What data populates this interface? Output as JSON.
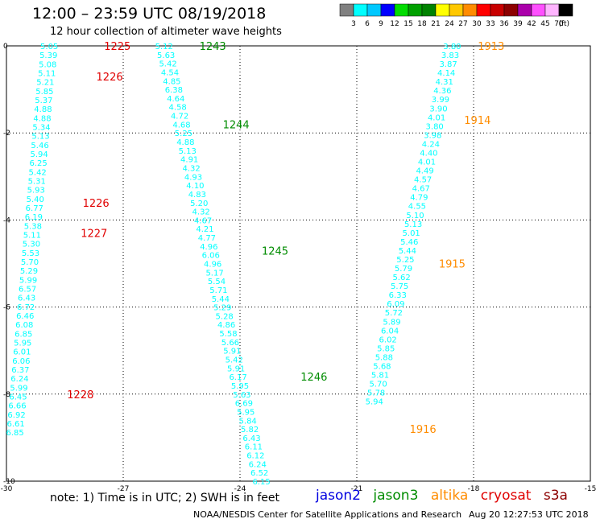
{
  "header": {
    "title": "12:00 – 23:59 UTC 08/19/2018",
    "subtitle": "12 hour collection of altimeter wave heights"
  },
  "color_scale": {
    "labels": [
      "3",
      "6",
      "9",
      "12",
      "15",
      "18",
      "21",
      "24",
      "27",
      "30",
      "33",
      "36",
      "39",
      "42",
      "45",
      "70"
    ],
    "unit": "(ft)",
    "colors": [
      "#808080",
      "#00ffff",
      "#00c8ff",
      "#0000ff",
      "#00dc00",
      "#00a000",
      "#008200",
      "#ffff00",
      "#ffc800",
      "#ff8c00",
      "#ff0000",
      "#c80000",
      "#8c0000",
      "#aa00aa",
      "#ff50ff",
      "#ffb4ff",
      "#000000"
    ]
  },
  "map": {
    "lon_range": [
      -30,
      -15
    ],
    "lat_range": [
      -10,
      0
    ],
    "lon_ticks": [
      "-30",
      "-27",
      "-24",
      "-21",
      "-18",
      "-15"
    ],
    "lat_ticks": [
      "0",
      "-2",
      "-4",
      "-6",
      "-8",
      "-10"
    ],
    "tracks": [
      {
        "name": "track-a",
        "points": [
          {
            "lon": -28.9,
            "lat": 0,
            "v": "5.05"
          },
          {
            "lon": -28.92,
            "lat": -0.206,
            "v": "5.39"
          },
          {
            "lon": -28.94,
            "lat": -0.413,
            "v": "5.08"
          },
          {
            "lon": -28.96,
            "lat": -0.619,
            "v": "5.11"
          },
          {
            "lon": -29.0,
            "lat": -0.826,
            "v": "5.21"
          },
          {
            "lon": -29.02,
            "lat": -1.032,
            "v": "5.85"
          },
          {
            "lon": -29.04,
            "lat": -1.239,
            "v": "5.37"
          },
          {
            "lon": -29.06,
            "lat": -1.445,
            "v": "4.88"
          },
          {
            "lon": -29.08,
            "lat": -1.651,
            "v": "4.88"
          },
          {
            "lon": -29.1,
            "lat": -1.858,
            "v": "5.34"
          },
          {
            "lon": -29.12,
            "lat": -2.064,
            "v": "5.13"
          },
          {
            "lon": -29.14,
            "lat": -2.27,
            "v": "5.46"
          },
          {
            "lon": -29.16,
            "lat": -2.477,
            "v": "5.94"
          },
          {
            "lon": -29.18,
            "lat": -2.683,
            "v": "6.25"
          },
          {
            "lon": -29.2,
            "lat": -2.89,
            "v": "5.42"
          },
          {
            "lon": -29.22,
            "lat": -3.096,
            "v": "5.31"
          },
          {
            "lon": -29.24,
            "lat": -3.303,
            "v": "5.93"
          },
          {
            "lon": -29.26,
            "lat": -3.509,
            "v": "5.40"
          },
          {
            "lon": -29.28,
            "lat": -3.716,
            "v": "6.77"
          },
          {
            "lon": -29.3,
            "lat": -3.922,
            "v": "6.19"
          },
          {
            "lon": -29.32,
            "lat": -4.128,
            "v": "5.38"
          },
          {
            "lon": -29.34,
            "lat": -4.335,
            "v": "5.11"
          },
          {
            "lon": -29.36,
            "lat": -4.541,
            "v": "5.30"
          },
          {
            "lon": -29.38,
            "lat": -4.748,
            "v": "5.53"
          },
          {
            "lon": -29.4,
            "lat": -4.954,
            "v": "5.70"
          },
          {
            "lon": -29.42,
            "lat": -5.161,
            "v": "5.29"
          },
          {
            "lon": -29.44,
            "lat": -5.367,
            "v": "5.99"
          },
          {
            "lon": -29.46,
            "lat": -5.573,
            "v": "6.57"
          },
          {
            "lon": -29.48,
            "lat": -5.78,
            "v": "6.43"
          },
          {
            "lon": -29.5,
            "lat": -5.986,
            "v": "6.72"
          },
          {
            "lon": -29.52,
            "lat": -6.193,
            "v": "6.46"
          },
          {
            "lon": -29.54,
            "lat": -6.399,
            "v": "6.08"
          },
          {
            "lon": -29.56,
            "lat": -6.606,
            "v": "6.85"
          },
          {
            "lon": -29.58,
            "lat": -6.812,
            "v": "5.95"
          },
          {
            "lon": -29.6,
            "lat": -7.018,
            "v": "6.01"
          },
          {
            "lon": -29.62,
            "lat": -7.225,
            "v": "6.06"
          },
          {
            "lon": -29.64,
            "lat": -7.431,
            "v": "6.37"
          },
          {
            "lon": -29.66,
            "lat": -7.638,
            "v": "6.24"
          },
          {
            "lon": -29.68,
            "lat": -7.844,
            "v": "5.99"
          },
          {
            "lon": -29.7,
            "lat": -8.051,
            "v": "6.45"
          },
          {
            "lon": -29.72,
            "lat": -8.257,
            "v": "6.66"
          },
          {
            "lon": -29.74,
            "lat": -8.463,
            "v": "6.92"
          },
          {
            "lon": -29.76,
            "lat": -8.67,
            "v": "6.61"
          },
          {
            "lon": -29.78,
            "lat": -8.876,
            "v": "6.85"
          }
        ]
      },
      {
        "name": "track-b",
        "points": [
          {
            "lon": -25.95,
            "lat": 0,
            "v": "5.12"
          },
          {
            "lon": -25.9,
            "lat": -0.2,
            "v": "5.63"
          },
          {
            "lon": -25.85,
            "lat": -0.4,
            "v": "5.42"
          },
          {
            "lon": -25.8,
            "lat": -0.6,
            "v": "4.54"
          },
          {
            "lon": -25.75,
            "lat": -0.8,
            "v": "4.85"
          },
          {
            "lon": -25.7,
            "lat": -1.0,
            "v": "6.38"
          },
          {
            "lon": -25.65,
            "lat": -1.2,
            "v": "4.64"
          },
          {
            "lon": -25.6,
            "lat": -1.4,
            "v": "4.58"
          },
          {
            "lon": -25.55,
            "lat": -1.6,
            "v": "4.72"
          },
          {
            "lon": -25.5,
            "lat": -1.8,
            "v": "4.68"
          },
          {
            "lon": -25.45,
            "lat": -2.0,
            "v": "5.25"
          },
          {
            "lon": -25.4,
            "lat": -2.2,
            "v": "4.88"
          },
          {
            "lon": -25.35,
            "lat": -2.4,
            "v": "5.13"
          },
          {
            "lon": -25.3,
            "lat": -2.6,
            "v": "4.91"
          },
          {
            "lon": -25.25,
            "lat": -2.8,
            "v": "4.32"
          },
          {
            "lon": -25.2,
            "lat": -3.0,
            "v": "4.93"
          },
          {
            "lon": -25.15,
            "lat": -3.2,
            "v": "4.10"
          },
          {
            "lon": -25.1,
            "lat": -3.4,
            "v": "4.83"
          },
          {
            "lon": -25.05,
            "lat": -3.6,
            "v": "5.20"
          },
          {
            "lon": -25.0,
            "lat": -3.8,
            "v": "4.32"
          },
          {
            "lon": -24.95,
            "lat": -4.0,
            "v": "4.67"
          },
          {
            "lon": -24.9,
            "lat": -4.2,
            "v": "4.21"
          },
          {
            "lon": -24.85,
            "lat": -4.4,
            "v": "4.77"
          },
          {
            "lon": -24.8,
            "lat": -4.6,
            "v": "4.96"
          },
          {
            "lon": -24.75,
            "lat": -4.8,
            "v": "6.06"
          },
          {
            "lon": -24.7,
            "lat": -5.0,
            "v": "4.96"
          },
          {
            "lon": -24.65,
            "lat": -5.2,
            "v": "5.17"
          },
          {
            "lon": -24.6,
            "lat": -5.4,
            "v": "5.54"
          },
          {
            "lon": -24.55,
            "lat": -5.6,
            "v": "5.71"
          },
          {
            "lon": -24.5,
            "lat": -5.8,
            "v": "5.44"
          },
          {
            "lon": -24.45,
            "lat": -6.0,
            "v": "5.29"
          },
          {
            "lon": -24.4,
            "lat": -6.2,
            "v": "5.28"
          },
          {
            "lon": -24.35,
            "lat": -6.4,
            "v": "4.86"
          },
          {
            "lon": -24.3,
            "lat": -6.6,
            "v": "5.58"
          },
          {
            "lon": -24.25,
            "lat": -6.8,
            "v": "5.66"
          },
          {
            "lon": -24.2,
            "lat": -7.0,
            "v": "5.91"
          },
          {
            "lon": -24.15,
            "lat": -7.2,
            "v": "5.42"
          },
          {
            "lon": -24.1,
            "lat": -7.4,
            "v": "5.91"
          },
          {
            "lon": -24.05,
            "lat": -7.6,
            "v": "6.17"
          },
          {
            "lon": -24.0,
            "lat": -7.8,
            "v": "5.95"
          },
          {
            "lon": -23.95,
            "lat": -8.0,
            "v": "5.63"
          },
          {
            "lon": -23.9,
            "lat": -8.2,
            "v": "6.69"
          },
          {
            "lon": -23.85,
            "lat": -8.4,
            "v": "5.95"
          },
          {
            "lon": -23.8,
            "lat": -8.6,
            "v": "5.84"
          },
          {
            "lon": -23.75,
            "lat": -8.8,
            "v": "5.82"
          },
          {
            "lon": -23.7,
            "lat": -9.0,
            "v": "6.43"
          },
          {
            "lon": -23.65,
            "lat": -9.2,
            "v": "6.11"
          },
          {
            "lon": -23.6,
            "lat": -9.4,
            "v": "6.12"
          },
          {
            "lon": -23.55,
            "lat": -9.6,
            "v": "6.24"
          },
          {
            "lon": -23.5,
            "lat": -9.8,
            "v": "6.52"
          },
          {
            "lon": -23.45,
            "lat": -10.0,
            "v": "6.15"
          }
        ]
      },
      {
        "name": "track-c",
        "points": [
          {
            "lon": -18.55,
            "lat": 0,
            "v": "3.80"
          },
          {
            "lon": -18.6,
            "lat": -0.204,
            "v": "3.83"
          },
          {
            "lon": -18.65,
            "lat": -0.408,
            "v": "3.87"
          },
          {
            "lon": -18.7,
            "lat": -0.612,
            "v": "4.14"
          },
          {
            "lon": -18.75,
            "lat": -0.816,
            "v": "4.31"
          },
          {
            "lon": -18.8,
            "lat": -1.02,
            "v": "4.36"
          },
          {
            "lon": -18.85,
            "lat": -1.224,
            "v": "3.99"
          },
          {
            "lon": -18.9,
            "lat": -1.429,
            "v": "3.90"
          },
          {
            "lon": -18.95,
            "lat": -1.633,
            "v": "4.01"
          },
          {
            "lon": -19.0,
            "lat": -1.837,
            "v": "3.80"
          },
          {
            "lon": -19.05,
            "lat": -2.041,
            "v": "3.98"
          },
          {
            "lon": -19.1,
            "lat": -2.245,
            "v": "4.24"
          },
          {
            "lon": -19.15,
            "lat": -2.449,
            "v": "4.40"
          },
          {
            "lon": -19.2,
            "lat": -2.653,
            "v": "4.01"
          },
          {
            "lon": -19.25,
            "lat": -2.857,
            "v": "4.49"
          },
          {
            "lon": -19.3,
            "lat": -3.061,
            "v": "4.57"
          },
          {
            "lon": -19.35,
            "lat": -3.265,
            "v": "4.67"
          },
          {
            "lon": -19.4,
            "lat": -3.469,
            "v": "4.79"
          },
          {
            "lon": -19.45,
            "lat": -3.673,
            "v": "4.55"
          },
          {
            "lon": -19.5,
            "lat": -3.878,
            "v": "5.10"
          },
          {
            "lon": -19.55,
            "lat": -4.082,
            "v": "5.13"
          },
          {
            "lon": -19.6,
            "lat": -4.286,
            "v": "5.01"
          },
          {
            "lon": -19.65,
            "lat": -4.49,
            "v": "5.46"
          },
          {
            "lon": -19.7,
            "lat": -4.694,
            "v": "5.44"
          },
          {
            "lon": -19.75,
            "lat": -4.898,
            "v": "5.25"
          },
          {
            "lon": -19.8,
            "lat": -5.102,
            "v": "5.79"
          },
          {
            "lon": -19.85,
            "lat": -5.306,
            "v": "5.62"
          },
          {
            "lon": -19.9,
            "lat": -5.51,
            "v": "5.75"
          },
          {
            "lon": -19.95,
            "lat": -5.714,
            "v": "6.33"
          },
          {
            "lon": -20.0,
            "lat": -5.918,
            "v": "6.09"
          },
          {
            "lon": -20.05,
            "lat": -6.122,
            "v": "5.72"
          },
          {
            "lon": -20.1,
            "lat": -6.327,
            "v": "5.89"
          },
          {
            "lon": -20.15,
            "lat": -6.531,
            "v": "6.04"
          },
          {
            "lon": -20.2,
            "lat": -6.735,
            "v": "6.02"
          },
          {
            "lon": -20.25,
            "lat": -6.939,
            "v": "5.85"
          },
          {
            "lon": -20.3,
            "lat": -7.143,
            "v": "5.88"
          },
          {
            "lon": -20.35,
            "lat": -7.347,
            "v": "5.68"
          },
          {
            "lon": -20.4,
            "lat": -7.551,
            "v": "5.81"
          },
          {
            "lon": -20.45,
            "lat": -7.755,
            "v": "5.70"
          },
          {
            "lon": -20.5,
            "lat": -7.959,
            "v": "5.78"
          },
          {
            "lon": -20.55,
            "lat": -8.163,
            "v": "5.94"
          }
        ]
      }
    ],
    "time_labels": [
      {
        "text": "1225",
        "color": "#e00000",
        "lon": -27.15,
        "lat": 0
      },
      {
        "text": "1226",
        "color": "#e00000",
        "lon": -27.35,
        "lat": -0.7
      },
      {
        "text": "1226",
        "color": "#e00000",
        "lon": -27.7,
        "lat": -3.6
      },
      {
        "text": "1227",
        "color": "#e00000",
        "lon": -27.75,
        "lat": -4.3
      },
      {
        "text": "1228",
        "color": "#e00000",
        "lon": -28.1,
        "lat": -8.0
      },
      {
        "text": "1243",
        "color": "#008c00",
        "lon": -24.7,
        "lat": 0
      },
      {
        "text": "1244",
        "color": "#008c00",
        "lon": -24.1,
        "lat": -1.8
      },
      {
        "text": "1245",
        "color": "#008c00",
        "lon": -23.1,
        "lat": -4.7
      },
      {
        "text": "1246",
        "color": "#008c00",
        "lon": -22.1,
        "lat": -7.6
      },
      {
        "text": "1913",
        "color": "#ff8c00",
        "lon": -17.55,
        "lat": 0
      },
      {
        "text": "1914",
        "color": "#ff8c00",
        "lon": -17.9,
        "lat": -1.7
      },
      {
        "text": "1915",
        "color": "#ff8c00",
        "lon": -18.55,
        "lat": -5.0
      },
      {
        "text": "1916",
        "color": "#ff8c00",
        "lon": -19.3,
        "lat": -8.8
      }
    ]
  },
  "footer": {
    "note": "note: 1) Time is in UTC; 2) SWH is in feet",
    "satellites": [
      {
        "name": "jason2",
        "color": "#0000e0"
      },
      {
        "name": "jason3",
        "color": "#008c00"
      },
      {
        "name": "altika",
        "color": "#ff8c00"
      },
      {
        "name": "cryosat",
        "color": "#e00000"
      },
      {
        "name": "s3a",
        "color": "#8c0000"
      }
    ],
    "credit": "NOAA/NESDIS Center for Satellite Applications and Research",
    "timestamp": "Aug 20 12:27:53 UTC 2018"
  }
}
